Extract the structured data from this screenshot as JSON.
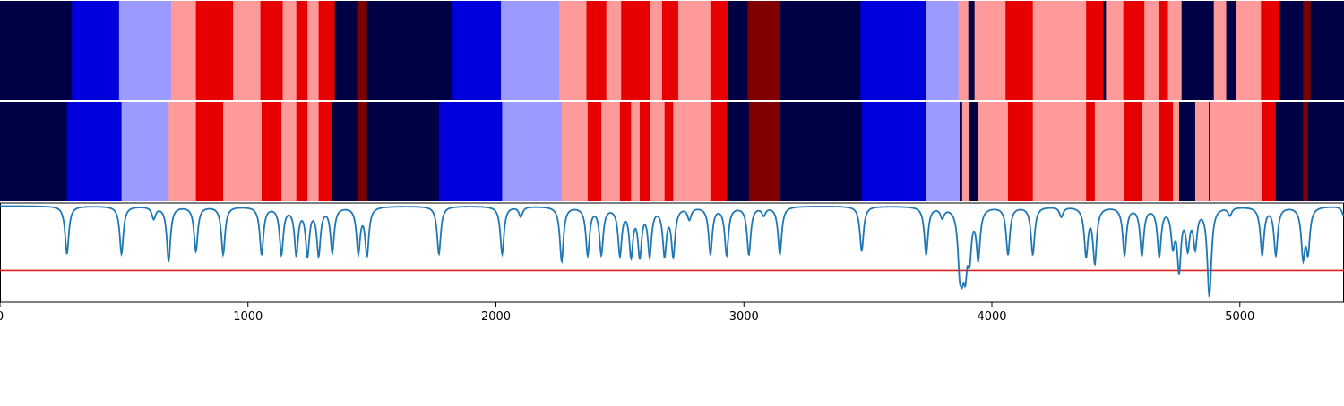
{
  "chart_data": [
    {
      "type": "heatmap",
      "title": "",
      "xlim": [
        0,
        5420
      ],
      "palette": {
        "1": "#000044",
        "2": "#0000dd",
        "3": "#9a9aff",
        "4": "#ff9a9a",
        "5": "#e60000",
        "6": "#800000"
      },
      "segments": [
        {
          "start": 0,
          "end": 290,
          "value": 1
        },
        {
          "start": 290,
          "end": 480,
          "value": 2
        },
        {
          "start": 480,
          "end": 690,
          "value": 3
        },
        {
          "start": 690,
          "end": 790,
          "value": 4
        },
        {
          "start": 790,
          "end": 940,
          "value": 5
        },
        {
          "start": 940,
          "end": 1050,
          "value": 4
        },
        {
          "start": 1050,
          "end": 1140,
          "value": 5
        },
        {
          "start": 1140,
          "end": 1195,
          "value": 4
        },
        {
          "start": 1195,
          "end": 1240,
          "value": 5
        },
        {
          "start": 1240,
          "end": 1285,
          "value": 4
        },
        {
          "start": 1285,
          "end": 1350,
          "value": 5
        },
        {
          "start": 1350,
          "end": 1440,
          "value": 1
        },
        {
          "start": 1440,
          "end": 1480,
          "value": 6
        },
        {
          "start": 1480,
          "end": 1825,
          "value": 1
        },
        {
          "start": 1825,
          "end": 2020,
          "value": 2
        },
        {
          "start": 2020,
          "end": 2255,
          "value": 3
        },
        {
          "start": 2255,
          "end": 2365,
          "value": 4
        },
        {
          "start": 2365,
          "end": 2445,
          "value": 5
        },
        {
          "start": 2445,
          "end": 2505,
          "value": 4
        },
        {
          "start": 2505,
          "end": 2620,
          "value": 5
        },
        {
          "start": 2620,
          "end": 2670,
          "value": 4
        },
        {
          "start": 2670,
          "end": 2735,
          "value": 5
        },
        {
          "start": 2735,
          "end": 2865,
          "value": 4
        },
        {
          "start": 2865,
          "end": 2935,
          "value": 5
        },
        {
          "start": 2935,
          "end": 3015,
          "value": 1
        },
        {
          "start": 3015,
          "end": 3145,
          "value": 6
        },
        {
          "start": 3145,
          "end": 3470,
          "value": 1
        },
        {
          "start": 3470,
          "end": 3735,
          "value": 2
        },
        {
          "start": 3735,
          "end": 3865,
          "value": 3
        },
        {
          "start": 3865,
          "end": 3905,
          "value": 4
        },
        {
          "start": 3905,
          "end": 3930,
          "value": 1
        },
        {
          "start": 3930,
          "end": 4055,
          "value": 4
        },
        {
          "start": 4055,
          "end": 4165,
          "value": 5
        },
        {
          "start": 4165,
          "end": 4380,
          "value": 4
        },
        {
          "start": 4380,
          "end": 4450,
          "value": 5
        },
        {
          "start": 4450,
          "end": 4460,
          "value": 1
        },
        {
          "start": 4460,
          "end": 4530,
          "value": 4
        },
        {
          "start": 4530,
          "end": 4615,
          "value": 5
        },
        {
          "start": 4615,
          "end": 4675,
          "value": 4
        },
        {
          "start": 4675,
          "end": 4710,
          "value": 5
        },
        {
          "start": 4710,
          "end": 4765,
          "value": 4
        },
        {
          "start": 4765,
          "end": 4895,
          "value": 1
        },
        {
          "start": 4895,
          "end": 4945,
          "value": 4
        },
        {
          "start": 4945,
          "end": 4985,
          "value": 1
        },
        {
          "start": 4985,
          "end": 5085,
          "value": 4
        },
        {
          "start": 5085,
          "end": 5160,
          "value": 5
        },
        {
          "start": 5160,
          "end": 5255,
          "value": 1
        },
        {
          "start": 5255,
          "end": 5285,
          "value": 6
        },
        {
          "start": 5285,
          "end": 5420,
          "value": 1
        }
      ]
    },
    {
      "type": "heatmap",
      "title": "",
      "xlim": [
        0,
        5420
      ],
      "palette": {
        "1": "#000044",
        "2": "#0000dd",
        "3": "#9a9aff",
        "4": "#ff9a9a",
        "5": "#e60000",
        "6": "#800000"
      },
      "segments": [
        {
          "start": 0,
          "end": 270,
          "value": 1
        },
        {
          "start": 270,
          "end": 490,
          "value": 2
        },
        {
          "start": 490,
          "end": 680,
          "value": 3
        },
        {
          "start": 680,
          "end": 790,
          "value": 4
        },
        {
          "start": 790,
          "end": 900,
          "value": 5
        },
        {
          "start": 900,
          "end": 1055,
          "value": 4
        },
        {
          "start": 1055,
          "end": 1135,
          "value": 5
        },
        {
          "start": 1135,
          "end": 1195,
          "value": 4
        },
        {
          "start": 1195,
          "end": 1240,
          "value": 5
        },
        {
          "start": 1240,
          "end": 1285,
          "value": 4
        },
        {
          "start": 1285,
          "end": 1340,
          "value": 5
        },
        {
          "start": 1340,
          "end": 1445,
          "value": 1
        },
        {
          "start": 1445,
          "end": 1480,
          "value": 6
        },
        {
          "start": 1480,
          "end": 1770,
          "value": 1
        },
        {
          "start": 1770,
          "end": 2025,
          "value": 2
        },
        {
          "start": 2025,
          "end": 2265,
          "value": 3
        },
        {
          "start": 2265,
          "end": 2370,
          "value": 4
        },
        {
          "start": 2370,
          "end": 2425,
          "value": 5
        },
        {
          "start": 2425,
          "end": 2500,
          "value": 4
        },
        {
          "start": 2500,
          "end": 2545,
          "value": 5
        },
        {
          "start": 2545,
          "end": 2580,
          "value": 4
        },
        {
          "start": 2580,
          "end": 2620,
          "value": 5
        },
        {
          "start": 2620,
          "end": 2680,
          "value": 4
        },
        {
          "start": 2680,
          "end": 2715,
          "value": 5
        },
        {
          "start": 2715,
          "end": 2865,
          "value": 4
        },
        {
          "start": 2865,
          "end": 2930,
          "value": 5
        },
        {
          "start": 2930,
          "end": 3020,
          "value": 1
        },
        {
          "start": 3020,
          "end": 3145,
          "value": 6
        },
        {
          "start": 3145,
          "end": 3475,
          "value": 1
        },
        {
          "start": 3475,
          "end": 3735,
          "value": 2
        },
        {
          "start": 3735,
          "end": 3870,
          "value": 3
        },
        {
          "start": 3870,
          "end": 3880,
          "value": 1
        },
        {
          "start": 3880,
          "end": 3910,
          "value": 4
        },
        {
          "start": 3910,
          "end": 3945,
          "value": 1
        },
        {
          "start": 3945,
          "end": 4065,
          "value": 4
        },
        {
          "start": 4065,
          "end": 4165,
          "value": 5
        },
        {
          "start": 4165,
          "end": 4380,
          "value": 4
        },
        {
          "start": 4380,
          "end": 4415,
          "value": 5
        },
        {
          "start": 4415,
          "end": 4535,
          "value": 4
        },
        {
          "start": 4535,
          "end": 4605,
          "value": 5
        },
        {
          "start": 4605,
          "end": 4675,
          "value": 4
        },
        {
          "start": 4675,
          "end": 4730,
          "value": 5
        },
        {
          "start": 4730,
          "end": 4755,
          "value": 4
        },
        {
          "start": 4755,
          "end": 4820,
          "value": 1
        },
        {
          "start": 4820,
          "end": 4875,
          "value": 4
        },
        {
          "start": 4875,
          "end": 4880,
          "value": 1
        },
        {
          "start": 4880,
          "end": 5090,
          "value": 4
        },
        {
          "start": 5090,
          "end": 5145,
          "value": 5
        },
        {
          "start": 5145,
          "end": 5255,
          "value": 1
        },
        {
          "start": 5255,
          "end": 5275,
          "value": 6
        },
        {
          "start": 5275,
          "end": 5420,
          "value": 1
        }
      ]
    },
    {
      "type": "line",
      "title": "",
      "xlabel": "",
      "ylabel": "",
      "xlim": [
        0,
        5420
      ],
      "ylim": [
        0,
        1
      ],
      "xticks": [
        0,
        1000,
        2000,
        3000,
        4000,
        5000
      ],
      "xtick_labels": [
        "0",
        "1000",
        "2000",
        "3000",
        "4000",
        "5000"
      ],
      "threshold": 0.32,
      "baseline": 0.97,
      "dips": [
        {
          "x": 270,
          "depth": 0.48
        },
        {
          "x": 490,
          "depth": 0.48
        },
        {
          "x": 620,
          "depth": 0.12
        },
        {
          "x": 680,
          "depth": 0.55
        },
        {
          "x": 790,
          "depth": 0.45
        },
        {
          "x": 900,
          "depth": 0.48
        },
        {
          "x": 1055,
          "depth": 0.48
        },
        {
          "x": 1135,
          "depth": 0.47
        },
        {
          "x": 1195,
          "depth": 0.47
        },
        {
          "x": 1240,
          "depth": 0.47
        },
        {
          "x": 1285,
          "depth": 0.47
        },
        {
          "x": 1340,
          "depth": 0.45
        },
        {
          "x": 1445,
          "depth": 0.45
        },
        {
          "x": 1480,
          "depth": 0.48
        },
        {
          "x": 1770,
          "depth": 0.48
        },
        {
          "x": 2025,
          "depth": 0.48
        },
        {
          "x": 2100,
          "depth": 0.1
        },
        {
          "x": 2265,
          "depth": 0.55
        },
        {
          "x": 2370,
          "depth": 0.48
        },
        {
          "x": 2425,
          "depth": 0.47
        },
        {
          "x": 2500,
          "depth": 0.47
        },
        {
          "x": 2545,
          "depth": 0.47
        },
        {
          "x": 2580,
          "depth": 0.47
        },
        {
          "x": 2620,
          "depth": 0.47
        },
        {
          "x": 2680,
          "depth": 0.47
        },
        {
          "x": 2715,
          "depth": 0.48
        },
        {
          "x": 2780,
          "depth": 0.12
        },
        {
          "x": 2865,
          "depth": 0.47
        },
        {
          "x": 2930,
          "depth": 0.48
        },
        {
          "x": 3020,
          "depth": 0.48
        },
        {
          "x": 3080,
          "depth": 0.08
        },
        {
          "x": 3145,
          "depth": 0.48
        },
        {
          "x": 3475,
          "depth": 0.45
        },
        {
          "x": 3735,
          "depth": 0.48
        },
        {
          "x": 3800,
          "depth": 0.1
        },
        {
          "x": 3870,
          "depth": 0.48
        },
        {
          "x": 3880,
          "depth": 0.4
        },
        {
          "x": 3893,
          "depth": 0.5
        },
        {
          "x": 3910,
          "depth": 0.42
        },
        {
          "x": 3945,
          "depth": 0.5
        },
        {
          "x": 4065,
          "depth": 0.48
        },
        {
          "x": 4165,
          "depth": 0.48
        },
        {
          "x": 4280,
          "depth": 0.1
        },
        {
          "x": 4380,
          "depth": 0.48
        },
        {
          "x": 4415,
          "depth": 0.55
        },
        {
          "x": 4535,
          "depth": 0.48
        },
        {
          "x": 4605,
          "depth": 0.48
        },
        {
          "x": 4675,
          "depth": 0.48
        },
        {
          "x": 4730,
          "depth": 0.35
        },
        {
          "x": 4755,
          "depth": 0.6
        },
        {
          "x": 4790,
          "depth": 0.38
        },
        {
          "x": 4820,
          "depth": 0.38
        },
        {
          "x": 4875,
          "depth": 0.55
        },
        {
          "x": 4880,
          "depth": 0.4
        },
        {
          "x": 4960,
          "depth": 0.08
        },
        {
          "x": 5090,
          "depth": 0.48
        },
        {
          "x": 5145,
          "depth": 0.48
        },
        {
          "x": 5255,
          "depth": 0.48
        },
        {
          "x": 5275,
          "depth": 0.42
        },
        {
          "x": 5420,
          "depth": 0.1
        }
      ]
    }
  ]
}
